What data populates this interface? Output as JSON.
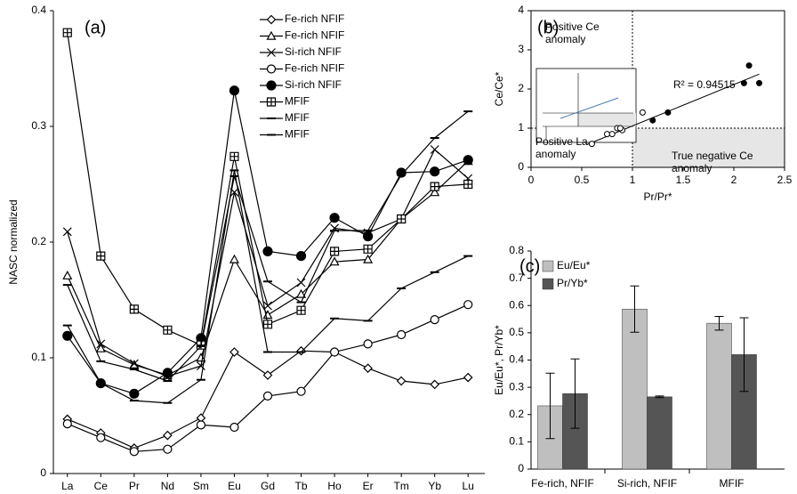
{
  "chart_data": [
    {
      "type": "line",
      "label": "(a)",
      "ylabel": "NASC normalized",
      "categories": [
        "La",
        "Ce",
        "Pr",
        "Nd",
        "Sm",
        "Eu",
        "Gd",
        "Tb",
        "Ho",
        "Er",
        "Tm",
        "Yb",
        "Lu"
      ],
      "ylim": [
        0,
        0.4
      ],
      "yticks": [
        0,
        0.1,
        0.2,
        0.3,
        0.4
      ],
      "series": [
        {
          "name": "Fe-rich NFIF",
          "color": "#000000",
          "marker": "diamond",
          "values": [
            0.047,
            0.035,
            0.022,
            0.033,
            0.048,
            0.105,
            0.085,
            0.106,
            0.105,
            0.091,
            0.08,
            0.077,
            0.083
          ]
        },
        {
          "name": "Fe-rich  NFIF",
          "color": "#000000",
          "marker": "triangle",
          "values": [
            0.171,
            0.108,
            0.094,
            0.085,
            0.1,
            0.185,
            0.137,
            0.155,
            0.183,
            0.185,
            0.22,
            0.243,
            0.27
          ]
        },
        {
          "name": "Si-rich NFIF",
          "color": "#000000",
          "marker": "x",
          "values": [
            0.209,
            0.112,
            0.095,
            0.084,
            0.093,
            0.243,
            0.145,
            0.165,
            0.212,
            0.208,
            0.22,
            0.28,
            0.255
          ]
        },
        {
          "name": "Fe-rich NFIF",
          "color": "#000000",
          "marker": "circle",
          "values": [
            0.043,
            0.031,
            0.019,
            0.021,
            0.042,
            0.04,
            0.067,
            0.071,
            0.105,
            0.112,
            0.12,
            0.133,
            0.146
          ]
        },
        {
          "name": "Si-rich  NFIF",
          "color": "#000000",
          "marker": "circle-filled",
          "values": [
            0.119,
            0.078,
            0.069,
            0.087,
            0.117,
            0.331,
            0.192,
            0.188,
            0.221,
            0.205,
            0.26,
            0.261,
            0.271
          ]
        },
        {
          "name": "MFIF",
          "color": "#000000",
          "marker": "square-plus",
          "values": [
            0.381,
            0.188,
            0.142,
            0.124,
            0.111,
            0.274,
            0.129,
            0.141,
            0.192,
            0.194,
            0.22,
            0.248,
            0.25
          ]
        },
        {
          "name": "MFIF",
          "color": "#000000",
          "marker": "dash",
          "values": [
            0.163,
            0.097,
            0.09,
            0.08,
            0.11,
            0.257,
            0.166,
            0.148,
            0.21,
            0.21,
            0.258,
            0.29,
            0.313
          ]
        },
        {
          "name": "MFIF",
          "color": "#000000",
          "marker": "dash",
          "values": [
            0.128,
            0.078,
            0.063,
            0.061,
            0.081,
            0.262,
            0.105,
            0.105,
            0.134,
            0.132,
            0.16,
            0.174,
            0.188
          ]
        }
      ]
    },
    {
      "type": "scatter",
      "label": "(b)",
      "xlabel": "Pr/Pr*",
      "ylabel": "Ce/Ce*",
      "xlim": [
        0,
        2.5
      ],
      "xticks": [
        0,
        0.5,
        1,
        1.5,
        2,
        2.5
      ],
      "ylim": [
        0,
        4
      ],
      "yticks": [
        0,
        1,
        2,
        3,
        4
      ],
      "reference_lines": {
        "x": 1,
        "y": 1
      },
      "shade_color": "#e6e6e6",
      "annotations": {
        "positive_ce": [
          "Positive Ce",
          "anomaly"
        ],
        "positive_la": [
          "Positive La",
          "anomaly"
        ],
        "negative_ce": [
          "True negative Ce",
          "anomaly"
        ],
        "r2": "R² = 0.94515"
      },
      "trendline": {
        "x": [
          0.55,
          2.25
        ],
        "y": [
          0.58,
          2.38
        ]
      },
      "series": [
        {
          "color": "#000000",
          "filled": false,
          "x": [
            0.6,
            0.75,
            0.8,
            0.85,
            0.9,
            0.88,
            1.1
          ],
          "y": [
            0.6,
            0.85,
            0.85,
            1.0,
            0.95,
            1.0,
            1.4
          ]
        },
        {
          "color": "#000000",
          "filled": true,
          "x": [
            1.2,
            1.35,
            2.1,
            2.15,
            2.25
          ],
          "y": [
            1.2,
            1.4,
            2.15,
            2.6,
            2.15
          ]
        }
      ]
    },
    {
      "type": "bar",
      "label": "(c)",
      "ylabel": "Eu/Eu*, Pr/Yb*",
      "categories": [
        "Fe-rich, NFIF",
        "Si-rich, NFIF",
        "MFIF"
      ],
      "ylim": [
        0,
        0.8
      ],
      "yticks": [
        0,
        0.1,
        0.2,
        0.3,
        0.4,
        0.5,
        0.6,
        0.7,
        0.8
      ],
      "series": [
        {
          "name": "Eu/Eu*",
          "color": "#bfbfbf",
          "values": [
            0.232,
            0.587,
            0.535
          ],
          "errors": [
            0.12,
            0.085,
            0.025
          ]
        },
        {
          "name": "Pr/Yb*",
          "color": "#555555",
          "values": [
            0.277,
            0.265,
            0.42
          ],
          "errors": [
            0.127,
            0.003,
            0.135
          ]
        }
      ]
    }
  ]
}
